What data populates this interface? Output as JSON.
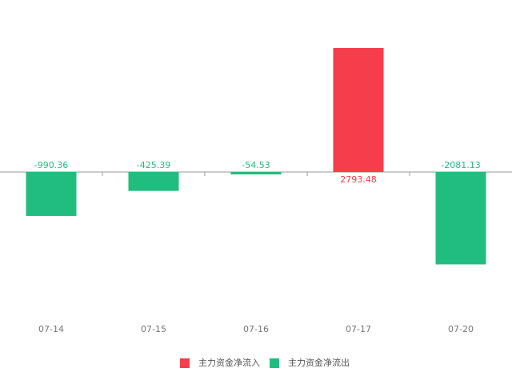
{
  "chart_data": {
    "type": "bar",
    "categories": [
      "07-14",
      "07-15",
      "07-16",
      "07-17",
      "07-20"
    ],
    "series": [
      {
        "name": "主力资金净流入",
        "color": "#f53d4c",
        "values": [
          null,
          null,
          null,
          2793.48,
          null
        ]
      },
      {
        "name": "主力资金净流出",
        "color": "#21bd7e",
        "values": [
          -990.36,
          -425.39,
          -54.53,
          null,
          -2081.13
        ]
      }
    ]
  }
}
